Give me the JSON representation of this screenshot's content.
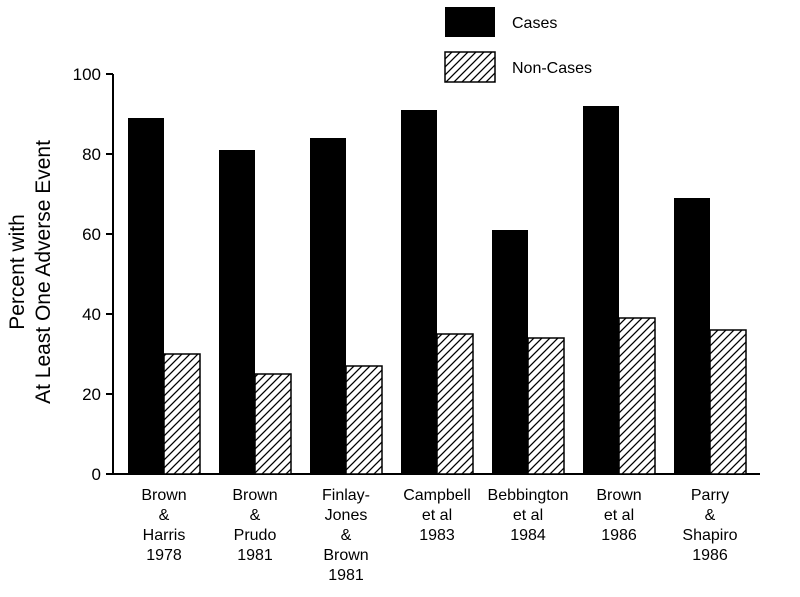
{
  "chart_data": {
    "type": "bar",
    "title": "",
    "xlabel": "",
    "ylabel_lines": [
      "Percent with",
      "At Least One Adverse Event"
    ],
    "ylim": [
      0,
      100
    ],
    "yticks": [
      0,
      20,
      40,
      60,
      80,
      100
    ],
    "grid": false,
    "legend_placement": "top-right",
    "categories": [
      [
        "Brown",
        "&",
        "Harris",
        "1978"
      ],
      [
        "Brown",
        "&",
        "Prudo",
        "1981"
      ],
      [
        "Finlay-",
        "Jones",
        "&",
        "Brown",
        "1981"
      ],
      [
        "Campbell",
        "et al",
        "1983"
      ],
      [
        "Bebbington",
        "et al",
        "1984"
      ],
      [
        "Brown",
        "et al",
        "1986"
      ],
      [
        "Parry",
        "&",
        "Shapiro",
        "1986"
      ]
    ],
    "series": [
      {
        "name": "Cases",
        "fill": "solid",
        "color": "#000000",
        "values": [
          89,
          81,
          84,
          91,
          61,
          92,
          69
        ]
      },
      {
        "name": "Non-Cases",
        "fill": "hatched",
        "color": "#000000",
        "values": [
          30,
          25,
          27,
          35,
          34,
          39,
          36
        ]
      }
    ]
  }
}
